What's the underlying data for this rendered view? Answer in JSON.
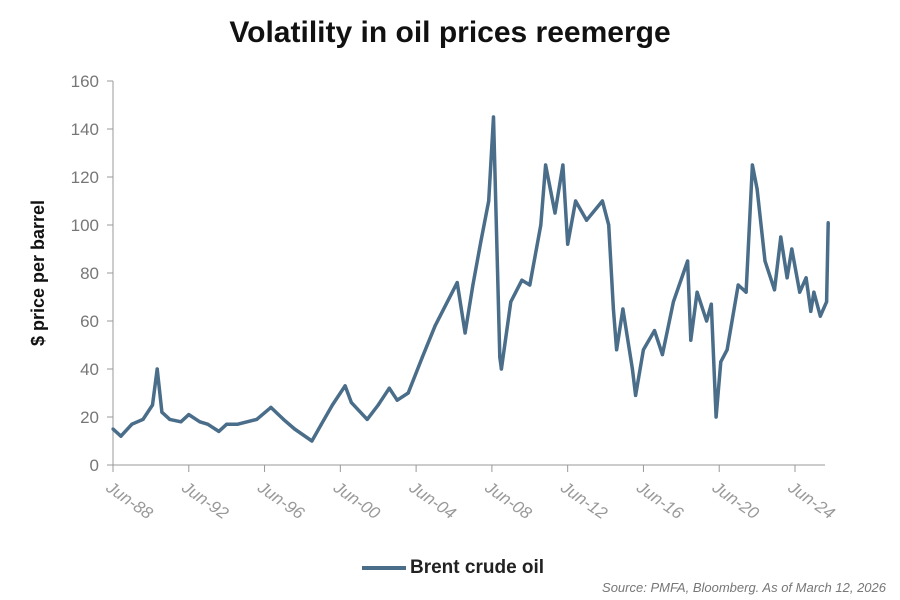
{
  "chart_data": {
    "type": "line",
    "title": "Volatility in oil prices reemerge",
    "xlabel": "",
    "ylabel": "$ price per barrel",
    "ylim": [
      0,
      160
    ],
    "yticks": [
      0,
      20,
      40,
      60,
      80,
      100,
      120,
      140,
      160
    ],
    "xticks": [
      {
        "date": "1988-06",
        "label": "Jun-88"
      },
      {
        "date": "1992-06",
        "label": "Jun-92"
      },
      {
        "date": "1996-06",
        "label": "Jun-96"
      },
      {
        "date": "2000-06",
        "label": "Jun-00"
      },
      {
        "date": "2004-06",
        "label": "Jun-04"
      },
      {
        "date": "2008-06",
        "label": "Jun-08"
      },
      {
        "date": "2012-06",
        "label": "Jun-12"
      },
      {
        "date": "2016-06",
        "label": "Jun-16"
      },
      {
        "date": "2020-06",
        "label": "Jun-20"
      },
      {
        "date": "2024-06",
        "label": "Jun-24"
      }
    ],
    "xlim": [
      "1988-06",
      "2026-03"
    ],
    "grid": false,
    "legend_placement": "bottom",
    "series": [
      {
        "name": "Brent crude oil",
        "color": "#4a6d8a",
        "points": [
          [
            "1988-06",
            15
          ],
          [
            "1988-11",
            12
          ],
          [
            "1989-06",
            17
          ],
          [
            "1990-01",
            19
          ],
          [
            "1990-07",
            25
          ],
          [
            "1990-10",
            40
          ],
          [
            "1991-01",
            22
          ],
          [
            "1991-06",
            19
          ],
          [
            "1992-01",
            18
          ],
          [
            "1992-06",
            21
          ],
          [
            "1993-01",
            18
          ],
          [
            "1993-06",
            17
          ],
          [
            "1994-01",
            14
          ],
          [
            "1994-06",
            17
          ],
          [
            "1995-01",
            17
          ],
          [
            "1996-01",
            19
          ],
          [
            "1996-10",
            24
          ],
          [
            "1997-06",
            19
          ],
          [
            "1998-01",
            15
          ],
          [
            "1998-12",
            10
          ],
          [
            "1999-06",
            17
          ],
          [
            "2000-01",
            25
          ],
          [
            "2000-09",
            33
          ],
          [
            "2001-01",
            26
          ],
          [
            "2001-11",
            19
          ],
          [
            "2002-06",
            25
          ],
          [
            "2003-01",
            32
          ],
          [
            "2003-06",
            27
          ],
          [
            "2004-01",
            30
          ],
          [
            "2004-10",
            45
          ],
          [
            "2005-06",
            58
          ],
          [
            "2006-08",
            76
          ],
          [
            "2007-01",
            55
          ],
          [
            "2007-06",
            75
          ],
          [
            "2007-11",
            93
          ],
          [
            "2008-04",
            110
          ],
          [
            "2008-07",
            145
          ],
          [
            "2008-11",
            45
          ],
          [
            "2008-12",
            40
          ],
          [
            "2009-06",
            68
          ],
          [
            "2010-01",
            77
          ],
          [
            "2010-06",
            75
          ],
          [
            "2011-01",
            100
          ],
          [
            "2011-04",
            125
          ],
          [
            "2011-10",
            105
          ],
          [
            "2012-03",
            125
          ],
          [
            "2012-06",
            92
          ],
          [
            "2012-11",
            110
          ],
          [
            "2013-06",
            102
          ],
          [
            "2014-04",
            110
          ],
          [
            "2014-08",
            100
          ],
          [
            "2014-11",
            65
          ],
          [
            "2015-01",
            48
          ],
          [
            "2015-05",
            65
          ],
          [
            "2015-11",
            40
          ],
          [
            "2016-01",
            29
          ],
          [
            "2016-06",
            48
          ],
          [
            "2017-01",
            56
          ],
          [
            "2017-06",
            46
          ],
          [
            "2018-01",
            68
          ],
          [
            "2018-10",
            85
          ],
          [
            "2018-12",
            52
          ],
          [
            "2019-04",
            72
          ],
          [
            "2019-10",
            60
          ],
          [
            "2020-01",
            67
          ],
          [
            "2020-04",
            20
          ],
          [
            "2020-07",
            43
          ],
          [
            "2020-11",
            48
          ],
          [
            "2021-06",
            75
          ],
          [
            "2021-11",
            72
          ],
          [
            "2022-03",
            125
          ],
          [
            "2022-06",
            115
          ],
          [
            "2022-11",
            85
          ],
          [
            "2023-05",
            73
          ],
          [
            "2023-09",
            95
          ],
          [
            "2024-01",
            78
          ],
          [
            "2024-04",
            90
          ],
          [
            "2024-09",
            72
          ],
          [
            "2025-01",
            78
          ],
          [
            "2025-04",
            64
          ],
          [
            "2025-06",
            72
          ],
          [
            "2025-10",
            62
          ],
          [
            "2026-02",
            68
          ],
          [
            "2026-03",
            101
          ]
        ]
      }
    ],
    "source": "Source: PMFA, Bloomberg. As of March 12, 2026"
  }
}
